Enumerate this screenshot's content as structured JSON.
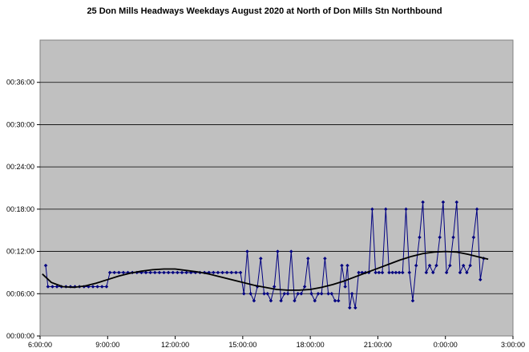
{
  "chart_data": {
    "type": "line",
    "title": "25 Don Mills Headways Weekdays August 2020 at North of Don Mills Stn Northbound",
    "xlabel": "",
    "ylabel": "",
    "x_axis": {
      "unit": "hours",
      "range": [
        6,
        27
      ],
      "ticks": [
        {
          "value": 6,
          "label": "6:00:00"
        },
        {
          "value": 9,
          "label": "9:00:00"
        },
        {
          "value": 12,
          "label": "12:00:00"
        },
        {
          "value": 15,
          "label": "15:00:00"
        },
        {
          "value": 18,
          "label": "18:00:00"
        },
        {
          "value": 21,
          "label": "21:00:00"
        },
        {
          "value": 24,
          "label": "0:00:00"
        },
        {
          "value": 27,
          "label": "3:00:00"
        }
      ]
    },
    "y_axis": {
      "unit": "minutes",
      "range": [
        0,
        42
      ],
      "ticks": [
        {
          "value": 0,
          "label": "00:00:00"
        },
        {
          "value": 6,
          "label": "00:06:00"
        },
        {
          "value": 12,
          "label": "00:12:00"
        },
        {
          "value": 18,
          "label": "00:18:00"
        },
        {
          "value": 24,
          "label": "00:24:00"
        },
        {
          "value": 30,
          "label": "00:30:00"
        },
        {
          "value": 36,
          "label": "00:36:00"
        }
      ]
    },
    "grid": true,
    "plot_background": "#c0c0c0",
    "series": [
      {
        "name": "",
        "color": "#000080",
        "marker": "diamond",
        "x": [
          6.25,
          6.35,
          6.55,
          6.75,
          6.95,
          7.15,
          7.35,
          7.55,
          7.75,
          7.95,
          8.15,
          8.35,
          8.55,
          8.75,
          8.95,
          9.1,
          9.3,
          9.5,
          9.7,
          9.9,
          10.1,
          10.3,
          10.5,
          10.7,
          10.9,
          11.1,
          11.3,
          11.5,
          11.7,
          11.9,
          12.1,
          12.3,
          12.5,
          12.7,
          12.9,
          13.1,
          13.3,
          13.5,
          13.7,
          13.9,
          14.1,
          14.3,
          14.5,
          14.7,
          14.9,
          15.05,
          15.2,
          15.35,
          15.5,
          15.65,
          15.8,
          15.95,
          16.1,
          16.25,
          16.4,
          16.55,
          16.7,
          16.85,
          17.0,
          17.15,
          17.3,
          17.45,
          17.6,
          17.75,
          17.9,
          18.05,
          18.2,
          18.35,
          18.5,
          18.65,
          18.8,
          18.95,
          19.1,
          19.25,
          19.4,
          19.55,
          19.65,
          19.75,
          19.85,
          20.0,
          20.15,
          20.3,
          20.45,
          20.6,
          20.75,
          20.9,
          21.05,
          21.2,
          21.35,
          21.5,
          21.65,
          21.8,
          21.95,
          22.1,
          22.25,
          22.4,
          22.55,
          22.7,
          22.85,
          23.0,
          23.15,
          23.3,
          23.45,
          23.6,
          23.75,
          23.9,
          24.05,
          24.2,
          24.35,
          24.5,
          24.65,
          24.8,
          24.95,
          25.1,
          25.25,
          25.4,
          25.55,
          25.7
        ],
        "y": [
          10,
          7,
          7,
          7,
          7,
          7,
          7,
          7,
          7,
          7,
          7,
          7,
          7,
          7,
          7,
          9,
          9,
          9,
          9,
          9,
          9,
          9,
          9,
          9,
          9,
          9,
          9,
          9,
          9,
          9,
          9,
          9,
          9,
          9,
          9,
          9,
          9,
          9,
          9,
          9,
          9,
          9,
          9,
          9,
          9,
          6,
          12,
          6,
          5,
          7,
          11,
          6,
          6,
          5,
          7,
          12,
          5,
          6,
          6,
          12,
          5,
          6,
          6,
          7,
          11,
          6,
          5,
          6,
          6,
          11,
          6,
          6,
          5,
          5,
          10,
          7,
          10,
          4,
          6,
          4,
          9,
          9,
          9,
          9,
          18,
          9,
          9,
          9,
          18,
          9,
          9,
          9,
          9,
          9,
          18,
          9,
          5,
          10,
          14,
          19,
          9,
          10,
          9,
          10,
          14,
          19,
          9,
          10,
          14,
          19,
          9,
          10,
          9,
          10,
          14,
          18,
          8,
          11
        ],
        "hidden_fill": false
      },
      {
        "name": "",
        "color": "#000000",
        "type": "trendline",
        "x": [
          6.1,
          6.5,
          7,
          7.5,
          8,
          8.5,
          9,
          9.5,
          10,
          10.5,
          11,
          11.5,
          12,
          12.5,
          13,
          13.5,
          14,
          14.5,
          15,
          15.5,
          16,
          16.5,
          17,
          17.5,
          18,
          18.5,
          19,
          19.5,
          20,
          20.5,
          21,
          21.5,
          22,
          22.5,
          23,
          23.5,
          24,
          24.5,
          25,
          25.5,
          25.9
        ],
        "y": [
          8.8,
          7.6,
          7.0,
          6.9,
          7.1,
          7.5,
          8.0,
          8.5,
          8.9,
          9.2,
          9.4,
          9.5,
          9.5,
          9.3,
          9.1,
          8.8,
          8.4,
          8.0,
          7.6,
          7.2,
          6.9,
          6.6,
          6.5,
          6.5,
          6.6,
          6.9,
          7.3,
          7.8,
          8.4,
          9.0,
          9.6,
          10.2,
          10.8,
          11.3,
          11.7,
          11.9,
          12.0,
          11.9,
          11.6,
          11.2,
          10.9
        ]
      }
    ]
  }
}
